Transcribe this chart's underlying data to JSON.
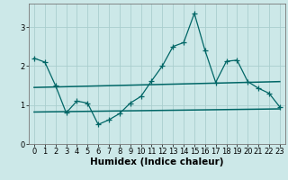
{
  "title": "",
  "xlabel": "Humidex (Indice chaleur)",
  "ylabel": "",
  "background_color": "#cce8e8",
  "grid_color": "#aacece",
  "line_color": "#006666",
  "xlim": [
    -0.5,
    23.5
  ],
  "ylim": [
    0,
    3.6
  ],
  "yticks": [
    0,
    1,
    2,
    3
  ],
  "xticks": [
    0,
    1,
    2,
    3,
    4,
    5,
    6,
    7,
    8,
    9,
    10,
    11,
    12,
    13,
    14,
    15,
    16,
    17,
    18,
    19,
    20,
    21,
    22,
    23
  ],
  "line1_x": [
    0,
    1,
    2,
    3,
    4,
    5,
    6,
    7,
    8,
    9,
    10,
    11,
    12,
    13,
    14,
    15,
    16,
    17,
    18,
    19,
    20,
    21,
    22,
    23
  ],
  "line1_y": [
    2.2,
    2.1,
    1.5,
    0.8,
    1.1,
    1.05,
    0.5,
    0.62,
    0.78,
    1.05,
    1.22,
    1.62,
    2.0,
    2.5,
    2.6,
    3.35,
    2.4,
    1.58,
    2.12,
    2.15,
    1.6,
    1.43,
    1.3,
    0.95
  ],
  "line2_x": [
    0,
    23
  ],
  "line2_y": [
    1.45,
    1.6
  ],
  "line3_x": [
    0,
    23
  ],
  "line3_y": [
    0.82,
    0.9
  ],
  "line1_marker": "+",
  "marker_size": 4,
  "font_size": 7,
  "tick_font_size": 6,
  "xlabel_fontsize": 7.5
}
